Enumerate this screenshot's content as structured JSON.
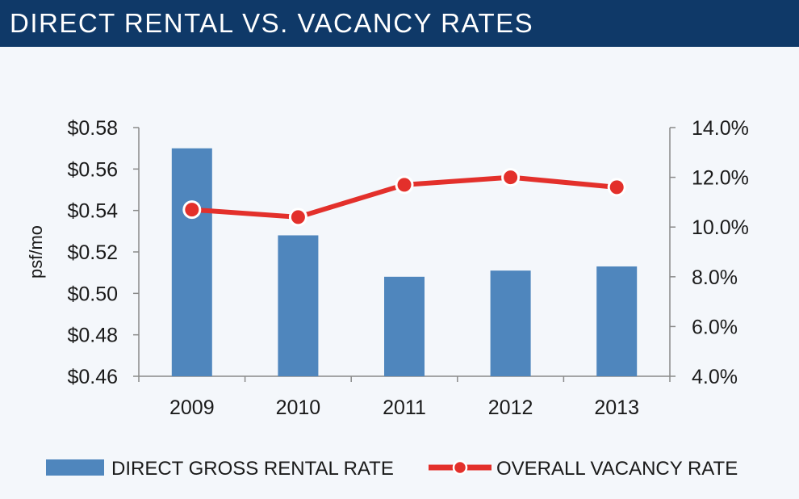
{
  "header": {
    "title": "DIRECT RENTAL VS. VACANCY RATES"
  },
  "colors": {
    "header_bg": "#0f3968",
    "bar": "#4f86bd",
    "line": "#e3302b",
    "background": "#f4f7fb"
  },
  "chart_data": {
    "type": "bar",
    "categories": [
      "2009",
      "2010",
      "2011",
      "2012",
      "2013"
    ],
    "series": [
      {
        "name": "DIRECT GROSS RENTAL RATE",
        "type": "bar",
        "axis": "left",
        "values": [
          0.57,
          0.528,
          0.508,
          0.511,
          0.513
        ]
      },
      {
        "name": "OVERALL VACANCY RATE",
        "type": "line",
        "axis": "right",
        "values": [
          10.7,
          10.4,
          11.7,
          12.0,
          11.6
        ]
      }
    ],
    "ylabel": "psf/mo",
    "ylim": [
      0.46,
      0.58
    ],
    "yticks": [
      "$0.58",
      "$0.56",
      "$0.54",
      "$0.52",
      "$0.50",
      "$0.48",
      "$0.46"
    ],
    "y2lim": [
      4.0,
      14.0
    ],
    "y2ticks": [
      "14.0%",
      "12.0%",
      "10.0%",
      "8.0%",
      "6.0%",
      "4.0%"
    ],
    "grid": false,
    "legend_position": "bottom"
  }
}
